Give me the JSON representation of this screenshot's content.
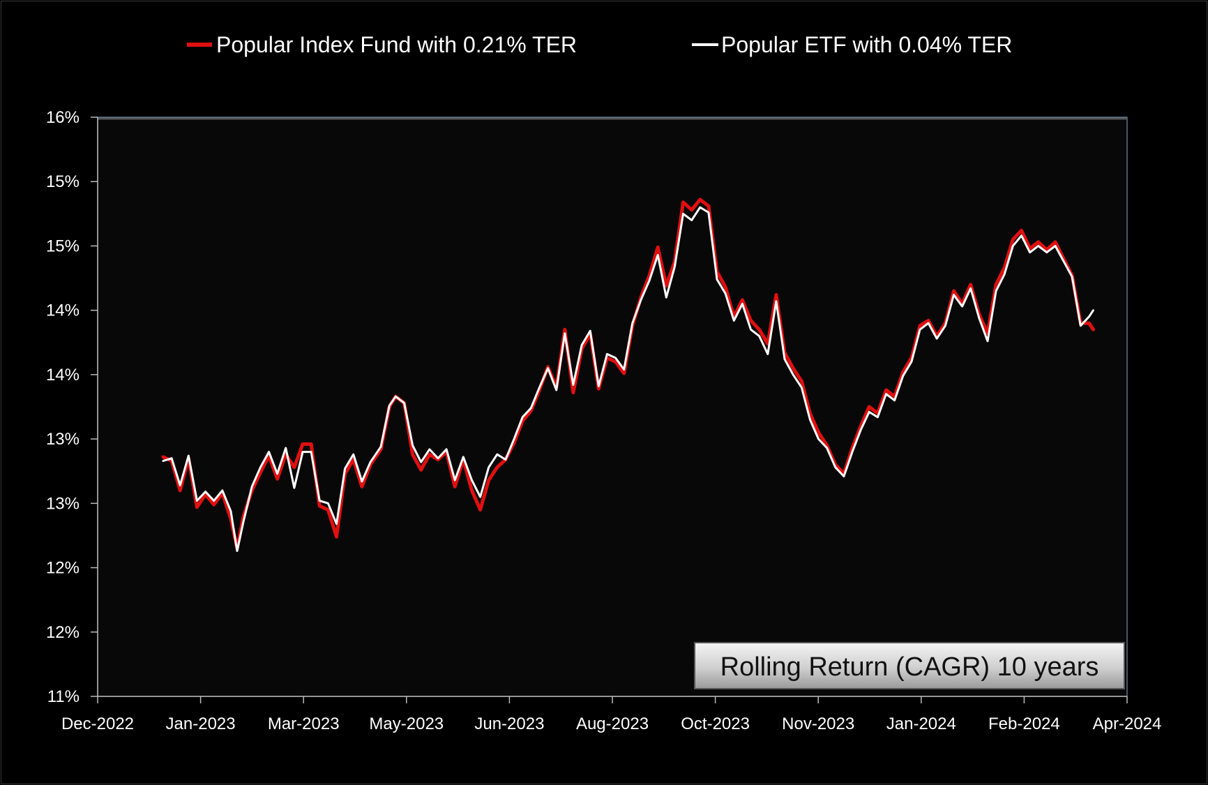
{
  "chart_data": {
    "type": "line",
    "title": "",
    "xlabel": "",
    "ylabel": "",
    "x_ticks": [
      "Dec-2022",
      "Jan-2023",
      "Mar-2023",
      "May-2023",
      "Jun-2023",
      "Aug-2023",
      "Oct-2023",
      "Nov-2023",
      "Jan-2024",
      "Feb-2024",
      "Apr-2024"
    ],
    "y_ticks": [
      "16%",
      "15%",
      "15%",
      "14%",
      "14%",
      "13%",
      "13%",
      "12%",
      "12%",
      "11%"
    ],
    "xlim": [
      "2022-12-01",
      "2024-04-01"
    ],
    "ylim": [
      11.0,
      15.5
    ],
    "grid": false,
    "legend_position": "top",
    "annotation": "Rolling Return (CAGR) 10 years",
    "series": [
      {
        "name": "Popular Index Fund with 0.21% TER",
        "color": "#e01010",
        "points": [
          [
            "2023-01-01",
            12.86
          ],
          [
            "2023-01-05",
            12.83
          ],
          [
            "2023-01-09",
            12.6
          ],
          [
            "2023-01-13",
            12.85
          ],
          [
            "2023-01-17",
            12.47
          ],
          [
            "2023-01-21",
            12.57
          ],
          [
            "2023-01-25",
            12.49
          ],
          [
            "2023-01-29",
            12.58
          ],
          [
            "2023-02-02",
            12.38
          ],
          [
            "2023-02-05",
            12.15
          ],
          [
            "2023-02-08",
            12.4
          ],
          [
            "2023-02-12",
            12.6
          ],
          [
            "2023-02-16",
            12.74
          ],
          [
            "2023-02-20",
            12.87
          ],
          [
            "2023-02-24",
            12.69
          ],
          [
            "2023-02-28",
            12.88
          ],
          [
            "2023-03-04",
            12.78
          ],
          [
            "2023-03-08",
            12.96
          ],
          [
            "2023-03-12",
            12.96
          ],
          [
            "2023-03-16",
            12.48
          ],
          [
            "2023-03-20",
            12.45
          ],
          [
            "2023-03-24",
            12.24
          ],
          [
            "2023-03-28",
            12.73
          ],
          [
            "2023-04-01",
            12.84
          ],
          [
            "2023-04-05",
            12.63
          ],
          [
            "2023-04-09",
            12.8
          ],
          [
            "2023-04-14",
            12.92
          ],
          [
            "2023-04-18",
            13.25
          ],
          [
            "2023-04-21",
            13.33
          ],
          [
            "2023-04-25",
            13.28
          ],
          [
            "2023-04-29",
            12.88
          ],
          [
            "2023-05-03",
            12.76
          ],
          [
            "2023-05-07",
            12.88
          ],
          [
            "2023-05-11",
            12.84
          ],
          [
            "2023-05-15",
            12.9
          ],
          [
            "2023-05-19",
            12.63
          ],
          [
            "2023-05-23",
            12.84
          ],
          [
            "2023-05-27",
            12.6
          ],
          [
            "2023-05-31",
            12.45
          ],
          [
            "2023-06-04",
            12.68
          ],
          [
            "2023-06-08",
            12.78
          ],
          [
            "2023-06-12",
            12.84
          ],
          [
            "2023-06-16",
            12.97
          ],
          [
            "2023-06-20",
            13.14
          ],
          [
            "2023-06-24",
            13.22
          ],
          [
            "2023-06-28",
            13.38
          ],
          [
            "2023-07-02",
            13.56
          ],
          [
            "2023-07-06",
            13.4
          ],
          [
            "2023-07-10",
            13.85
          ],
          [
            "2023-07-14",
            13.36
          ],
          [
            "2023-07-18",
            13.7
          ],
          [
            "2023-07-22",
            13.82
          ],
          [
            "2023-07-26",
            13.39
          ],
          [
            "2023-07-30",
            13.63
          ],
          [
            "2023-08-03",
            13.6
          ],
          [
            "2023-08-07",
            13.51
          ],
          [
            "2023-08-11",
            13.88
          ],
          [
            "2023-08-15",
            14.1
          ],
          [
            "2023-08-19",
            14.27
          ],
          [
            "2023-08-23",
            14.49
          ],
          [
            "2023-08-27",
            14.19
          ],
          [
            "2023-08-31",
            14.38
          ],
          [
            "2023-09-04",
            14.84
          ],
          [
            "2023-09-08",
            14.78
          ],
          [
            "2023-09-12",
            14.86
          ],
          [
            "2023-09-16",
            14.81
          ],
          [
            "2023-09-20",
            14.3
          ],
          [
            "2023-09-24",
            14.18
          ],
          [
            "2023-09-28",
            13.95
          ],
          [
            "2023-10-02",
            14.08
          ],
          [
            "2023-10-06",
            13.92
          ],
          [
            "2023-10-10",
            13.85
          ],
          [
            "2023-10-14",
            13.74
          ],
          [
            "2023-10-18",
            14.12
          ],
          [
            "2023-10-22",
            13.67
          ],
          [
            "2023-10-26",
            13.55
          ],
          [
            "2023-10-30",
            13.45
          ],
          [
            "2023-11-03",
            13.2
          ],
          [
            "2023-11-07",
            13.05
          ],
          [
            "2023-11-11",
            12.95
          ],
          [
            "2023-11-15",
            12.8
          ],
          [
            "2023-11-19",
            12.73
          ],
          [
            "2023-11-23",
            12.93
          ],
          [
            "2023-11-27",
            13.1
          ],
          [
            "2023-12-01",
            13.25
          ],
          [
            "2023-12-05",
            13.2
          ],
          [
            "2023-12-09",
            13.38
          ],
          [
            "2023-12-13",
            13.33
          ],
          [
            "2023-12-17",
            13.52
          ],
          [
            "2023-12-21",
            13.63
          ],
          [
            "2023-12-25",
            13.88
          ],
          [
            "2023-12-29",
            13.92
          ],
          [
            "2024-01-02",
            13.8
          ],
          [
            "2024-01-06",
            13.9
          ],
          [
            "2024-01-10",
            14.15
          ],
          [
            "2024-01-14",
            14.05
          ],
          [
            "2024-01-18",
            14.2
          ],
          [
            "2024-01-22",
            13.97
          ],
          [
            "2024-01-26",
            13.82
          ],
          [
            "2024-01-30",
            14.2
          ],
          [
            "2024-02-03",
            14.33
          ],
          [
            "2024-02-07",
            14.55
          ],
          [
            "2024-02-11",
            14.62
          ],
          [
            "2024-02-15",
            14.48
          ],
          [
            "2024-02-19",
            14.53
          ],
          [
            "2024-02-23",
            14.47
          ],
          [
            "2024-02-27",
            14.53
          ],
          [
            "2024-03-02",
            14.4
          ],
          [
            "2024-03-06",
            14.27
          ],
          [
            "2024-03-10",
            13.9
          ],
          [
            "2024-03-14",
            13.9
          ],
          [
            "2024-03-16",
            13.85
          ]
        ]
      },
      {
        "name": "Popular ETF with 0.04% TER",
        "color": "#ffffff",
        "points": [
          [
            "2023-01-01",
            12.83
          ],
          [
            "2023-01-05",
            12.85
          ],
          [
            "2023-01-09",
            12.64
          ],
          [
            "2023-01-13",
            12.87
          ],
          [
            "2023-01-17",
            12.52
          ],
          [
            "2023-01-21",
            12.59
          ],
          [
            "2023-01-25",
            12.52
          ],
          [
            "2023-01-29",
            12.6
          ],
          [
            "2023-02-02",
            12.44
          ],
          [
            "2023-02-05",
            12.13
          ],
          [
            "2023-02-08",
            12.36
          ],
          [
            "2023-02-12",
            12.63
          ],
          [
            "2023-02-16",
            12.78
          ],
          [
            "2023-02-20",
            12.9
          ],
          [
            "2023-02-24",
            12.73
          ],
          [
            "2023-02-28",
            12.93
          ],
          [
            "2023-03-04",
            12.62
          ],
          [
            "2023-03-08",
            12.9
          ],
          [
            "2023-03-12",
            12.9
          ],
          [
            "2023-03-16",
            12.52
          ],
          [
            "2023-03-20",
            12.5
          ],
          [
            "2023-03-24",
            12.34
          ],
          [
            "2023-03-28",
            12.77
          ],
          [
            "2023-04-01",
            12.88
          ],
          [
            "2023-04-05",
            12.67
          ],
          [
            "2023-04-09",
            12.82
          ],
          [
            "2023-04-14",
            12.94
          ],
          [
            "2023-04-18",
            13.26
          ],
          [
            "2023-04-21",
            13.33
          ],
          [
            "2023-04-25",
            13.28
          ],
          [
            "2023-04-29",
            12.95
          ],
          [
            "2023-05-03",
            12.82
          ],
          [
            "2023-05-07",
            12.92
          ],
          [
            "2023-05-11",
            12.85
          ],
          [
            "2023-05-15",
            12.92
          ],
          [
            "2023-05-19",
            12.68
          ],
          [
            "2023-05-23",
            12.86
          ],
          [
            "2023-05-27",
            12.68
          ],
          [
            "2023-05-31",
            12.55
          ],
          [
            "2023-06-04",
            12.78
          ],
          [
            "2023-06-08",
            12.88
          ],
          [
            "2023-06-12",
            12.84
          ],
          [
            "2023-06-16",
            13.0
          ],
          [
            "2023-06-20",
            13.17
          ],
          [
            "2023-06-24",
            13.24
          ],
          [
            "2023-06-28",
            13.4
          ],
          [
            "2023-07-02",
            13.55
          ],
          [
            "2023-07-06",
            13.38
          ],
          [
            "2023-07-10",
            13.82
          ],
          [
            "2023-07-14",
            13.42
          ],
          [
            "2023-07-18",
            13.73
          ],
          [
            "2023-07-22",
            13.84
          ],
          [
            "2023-07-26",
            13.41
          ],
          [
            "2023-07-30",
            13.66
          ],
          [
            "2023-08-03",
            13.63
          ],
          [
            "2023-08-07",
            13.54
          ],
          [
            "2023-08-11",
            13.9
          ],
          [
            "2023-08-15",
            14.08
          ],
          [
            "2023-08-19",
            14.23
          ],
          [
            "2023-08-23",
            14.43
          ],
          [
            "2023-08-27",
            14.1
          ],
          [
            "2023-08-31",
            14.34
          ],
          [
            "2023-09-04",
            14.75
          ],
          [
            "2023-09-08",
            14.7
          ],
          [
            "2023-09-12",
            14.8
          ],
          [
            "2023-09-16",
            14.76
          ],
          [
            "2023-09-20",
            14.24
          ],
          [
            "2023-09-24",
            14.13
          ],
          [
            "2023-09-28",
            13.92
          ],
          [
            "2023-10-02",
            14.05
          ],
          [
            "2023-10-06",
            13.85
          ],
          [
            "2023-10-10",
            13.8
          ],
          [
            "2023-10-14",
            13.66
          ],
          [
            "2023-10-18",
            14.07
          ],
          [
            "2023-10-22",
            13.62
          ],
          [
            "2023-10-26",
            13.5
          ],
          [
            "2023-10-30",
            13.4
          ],
          [
            "2023-11-03",
            13.15
          ],
          [
            "2023-11-07",
            13.0
          ],
          [
            "2023-11-11",
            12.93
          ],
          [
            "2023-11-15",
            12.78
          ],
          [
            "2023-11-19",
            12.71
          ],
          [
            "2023-11-23",
            12.9
          ],
          [
            "2023-11-27",
            13.07
          ],
          [
            "2023-12-01",
            13.21
          ],
          [
            "2023-12-05",
            13.17
          ],
          [
            "2023-12-09",
            13.35
          ],
          [
            "2023-12-13",
            13.3
          ],
          [
            "2023-12-17",
            13.49
          ],
          [
            "2023-12-21",
            13.6
          ],
          [
            "2023-12-25",
            13.85
          ],
          [
            "2023-12-29",
            13.9
          ],
          [
            "2024-01-02",
            13.78
          ],
          [
            "2024-01-06",
            13.88
          ],
          [
            "2024-01-10",
            14.12
          ],
          [
            "2024-01-14",
            14.03
          ],
          [
            "2024-01-18",
            14.17
          ],
          [
            "2024-01-22",
            13.94
          ],
          [
            "2024-01-26",
            13.76
          ],
          [
            "2024-01-30",
            14.15
          ],
          [
            "2024-02-03",
            14.28
          ],
          [
            "2024-02-07",
            14.5
          ],
          [
            "2024-02-11",
            14.58
          ],
          [
            "2024-02-15",
            14.45
          ],
          [
            "2024-02-19",
            14.5
          ],
          [
            "2024-02-23",
            14.45
          ],
          [
            "2024-02-27",
            14.5
          ],
          [
            "2024-03-02",
            14.38
          ],
          [
            "2024-03-06",
            14.26
          ],
          [
            "2024-03-10",
            13.88
          ],
          [
            "2024-03-14",
            13.95
          ],
          [
            "2024-03-16",
            14.0
          ]
        ]
      }
    ]
  }
}
